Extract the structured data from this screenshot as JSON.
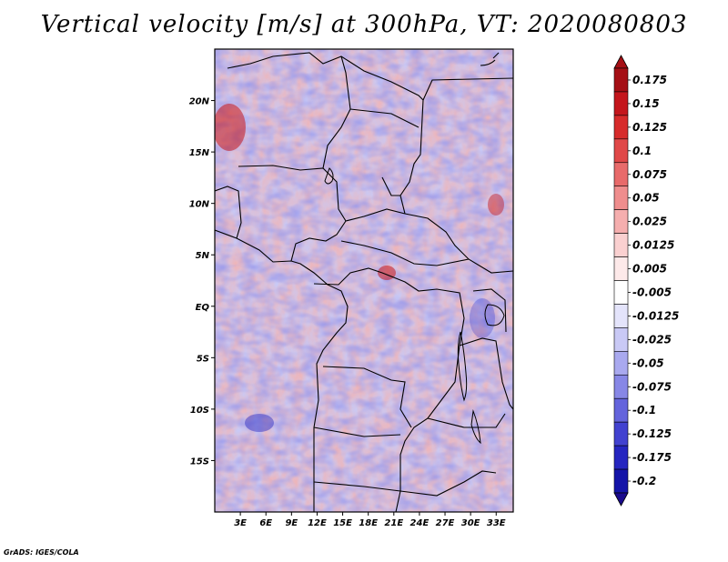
{
  "title": "Vertical velocity [m/s] at 300hPa, VT: 2020080803",
  "credit": "GrADS: IGES/COLA",
  "map": {
    "lon_range": [
      0,
      35
    ],
    "lat_range": [
      -20,
      25
    ],
    "lat_ticks": [
      {
        "value": 20,
        "label": "20N"
      },
      {
        "value": 15,
        "label": "15N"
      },
      {
        "value": 10,
        "label": "10N"
      },
      {
        "value": 5,
        "label": "5N"
      },
      {
        "value": 0,
        "label": "EQ"
      },
      {
        "value": -5,
        "label": "5S"
      },
      {
        "value": -10,
        "label": "10S"
      },
      {
        "value": -15,
        "label": "15S"
      }
    ],
    "lon_ticks": [
      {
        "value": 3,
        "label": "3E"
      },
      {
        "value": 6,
        "label": "6E"
      },
      {
        "value": 9,
        "label": "9E"
      },
      {
        "value": 12,
        "label": "12E"
      },
      {
        "value": 15,
        "label": "15E"
      },
      {
        "value": 18,
        "label": "18E"
      },
      {
        "value": 21,
        "label": "21E"
      },
      {
        "value": 24,
        "label": "24E"
      },
      {
        "value": 27,
        "label": "27E"
      },
      {
        "value": 30,
        "label": "30E"
      },
      {
        "value": 33,
        "label": "33E"
      }
    ]
  },
  "colorbar": {
    "levels": [
      {
        "label": "0.175",
        "color": "#a50f15"
      },
      {
        "label": "0.15",
        "color": "#c4161c"
      },
      {
        "label": "0.125",
        "color": "#d72b2b"
      },
      {
        "label": "0.1",
        "color": "#e04848"
      },
      {
        "label": "0.075",
        "color": "#e86a6a"
      },
      {
        "label": "0.05",
        "color": "#ef8d8d"
      },
      {
        "label": "0.025",
        "color": "#f5aeae"
      },
      {
        "label": "0.0125",
        "color": "#fad0d0"
      },
      {
        "label": "0.005",
        "color": "#fde9e9"
      },
      {
        "label": "-0.005",
        "color": "#ffffff"
      },
      {
        "label": "-0.0125",
        "color": "#e4e4fb"
      },
      {
        "label": "-0.025",
        "color": "#c9c9f5"
      },
      {
        "label": "-0.05",
        "color": "#a9a9ef"
      },
      {
        "label": "-0.075",
        "color": "#8787e6"
      },
      {
        "label": "-0.1",
        "color": "#6464dc"
      },
      {
        "label": "-0.125",
        "color": "#4242d0"
      },
      {
        "label": "-0.175",
        "color": "#2626c0"
      },
      {
        "label": "-0.2",
        "color": "#1414a8"
      }
    ],
    "max_arrow_color": "#a50f15",
    "min_arrow_color": "#1a0a8c"
  }
}
